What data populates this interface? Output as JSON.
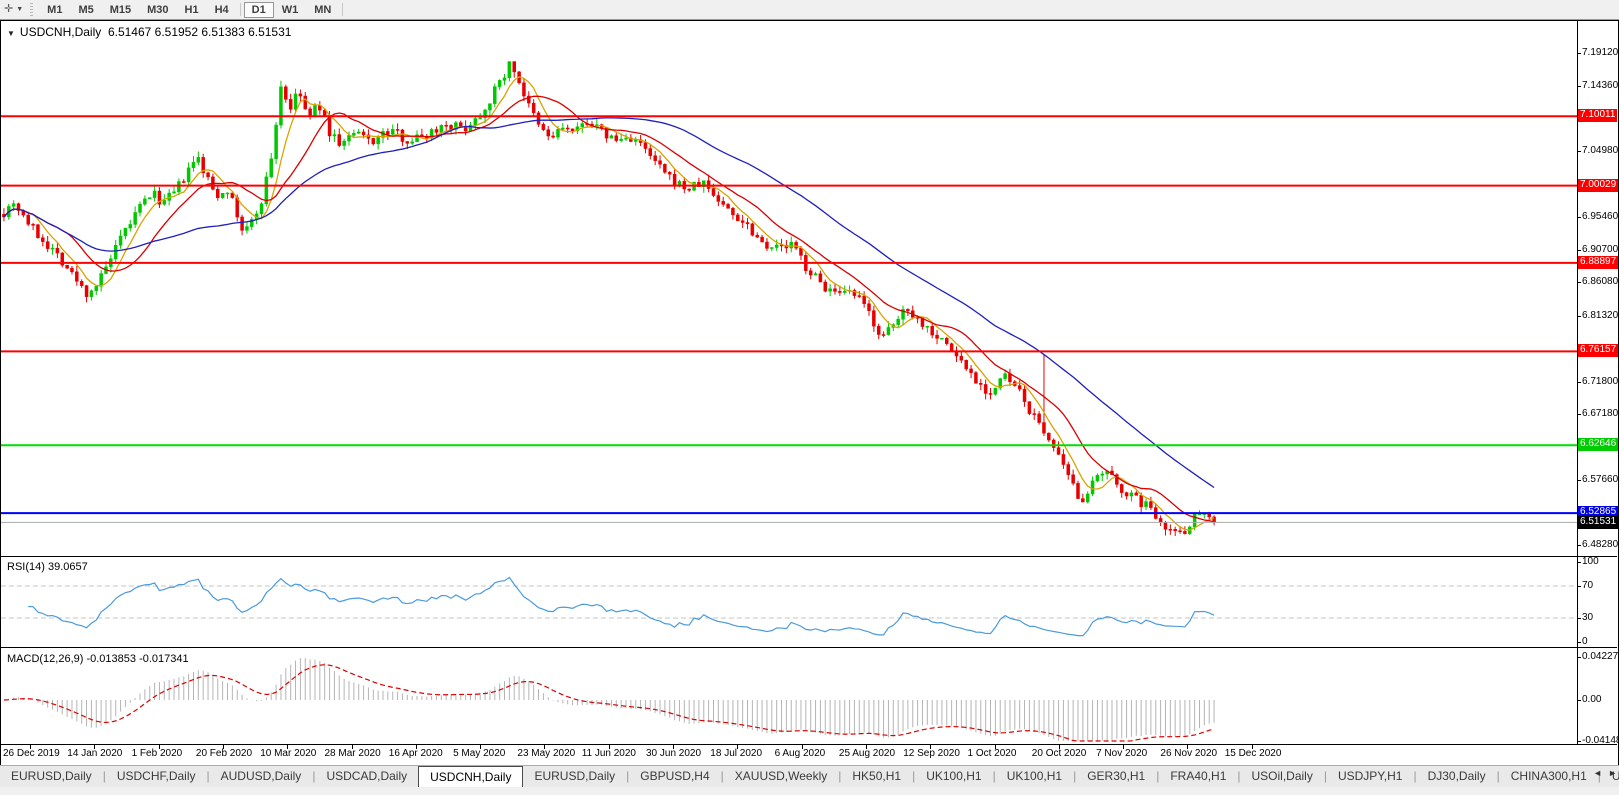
{
  "toolbar": {
    "cursor_tool_icon": "✛",
    "dropdown_caret": "▼",
    "timeframes": [
      {
        "label": "M1",
        "active": false
      },
      {
        "label": "M5",
        "active": false
      },
      {
        "label": "M15",
        "active": false
      },
      {
        "label": "M30",
        "active": false
      },
      {
        "label": "H1",
        "active": false
      },
      {
        "label": "H4",
        "active": false
      },
      {
        "label": "D1",
        "active": true
      },
      {
        "label": "W1",
        "active": false
      },
      {
        "label": "MN",
        "active": false
      }
    ]
  },
  "chart": {
    "collapse_caret": "▼",
    "symbol": "USDCNH,Daily",
    "ohlc": "6.51467 6.51952 6.51383 6.51531",
    "price_axis": [
      "7.19120",
      "7.14360",
      "7.04980",
      "6.95460",
      "6.90700",
      "6.86080",
      "6.81320",
      "6.71800",
      "6.67180",
      "6.57660",
      "6.48280"
    ],
    "level_labels": [
      {
        "label": "7.10011",
        "color": "#ff0000"
      },
      {
        "label": "7.00029",
        "color": "#ff0000"
      },
      {
        "label": "6.88897",
        "color": "#ff0000"
      },
      {
        "label": "6.76157",
        "color": "#ff0000"
      },
      {
        "label": "6.62646",
        "color": "#00cc00"
      },
      {
        "label": "6.52865",
        "color": "#0000e6"
      }
    ],
    "current_price": {
      "label": "6.51531",
      "bg": "#000000",
      "line_color": "#aaaaaa"
    }
  },
  "rsi": {
    "label": "RSI(14) 39.0657",
    "period": 14,
    "value": 39.0657,
    "axis": [
      "100",
      "70",
      "30",
      "0"
    ],
    "dashed_levels": [
      70,
      30
    ],
    "line_color": "#4a9ade"
  },
  "macd": {
    "label": "MACD(12,26,9) -0.013853 -0.017341",
    "axis": [
      "0.042275",
      "0.00",
      "-0.04148"
    ],
    "hist_color": "#b4b4b4",
    "signal_color": "#dd0000"
  },
  "date_axis": [
    "26 Dec 2019",
    "14 Jan 2020",
    "1 Feb 2020",
    "20 Feb 2020",
    "10 Mar 2020",
    "28 Mar 2020",
    "16 Apr 2020",
    "5 May 2020",
    "23 May 2020",
    "11 Jun 2020",
    "30 Jun 2020",
    "18 Jul 2020",
    "6 Aug 2020",
    "25 Aug 2020",
    "12 Sep 2020",
    "1 Oct 2020",
    "20 Oct 2020",
    "7 Nov 2020",
    "26 Nov 2020",
    "15 Dec 2020"
  ],
  "tabs": {
    "items": [
      {
        "label": "EURUSD,Daily",
        "active": false
      },
      {
        "label": "USDCHF,Daily",
        "active": false
      },
      {
        "label": "AUDUSD,Daily",
        "active": false
      },
      {
        "label": "USDCAD,Daily",
        "active": false
      },
      {
        "label": "USDCNH,Daily",
        "active": true
      },
      {
        "label": "EURUSD,Daily",
        "active": false
      },
      {
        "label": "GBPUSD,H4",
        "active": false
      },
      {
        "label": "XAUUSD,Weekly",
        "active": false
      },
      {
        "label": "HK50,H1",
        "active": false
      },
      {
        "label": "UK100,H1",
        "active": false
      },
      {
        "label": "UK100,H1",
        "active": false
      },
      {
        "label": "GER30,H1",
        "active": false
      },
      {
        "label": "FRA40,H1",
        "active": false
      },
      {
        "label": "USOil,Daily",
        "active": false
      },
      {
        "label": "USDJPY,H1",
        "active": false
      },
      {
        "label": "DJ30,Daily",
        "active": false
      },
      {
        "label": "CHINA300,H1",
        "active": false
      },
      {
        "label": "U",
        "active": false
      }
    ],
    "scroll_left": "◄",
    "scroll_right": "►"
  },
  "chart_data": {
    "type": "candlestick",
    "symbol": "USDCNH",
    "timeframe": "Daily",
    "visible_range": {
      "price_top": 7.1912,
      "price_bottom": 6.4828,
      "date_start": "26 Dec 2019",
      "date_end": "15 Dec 2020"
    },
    "last_ohlc": {
      "open": 6.51467,
      "high": 6.51952,
      "low": 6.51383,
      "close": 6.51531
    },
    "horizontal_levels": [
      {
        "price": 7.10011,
        "color": "#ff0000"
      },
      {
        "price": 7.00029,
        "color": "#ff0000"
      },
      {
        "price": 6.88897,
        "color": "#ff0000"
      },
      {
        "price": 6.76157,
        "color": "#ff0000"
      },
      {
        "price": 6.62646,
        "color": "#00dd00"
      },
      {
        "price": 6.52865,
        "color": "#0000ff"
      }
    ],
    "candles_approx": {
      "count": 250,
      "anchors": [
        [
          0.0,
          6.962
        ],
        [
          0.008,
          6.978
        ],
        [
          0.025,
          6.935
        ],
        [
          0.045,
          6.9
        ],
        [
          0.058,
          6.868
        ],
        [
          0.068,
          6.845
        ],
        [
          0.078,
          6.86
        ],
        [
          0.09,
          6.9
        ],
        [
          0.102,
          6.94
        ],
        [
          0.112,
          6.968
        ],
        [
          0.122,
          6.99
        ],
        [
          0.132,
          6.975
        ],
        [
          0.142,
          6.992
        ],
        [
          0.152,
          7.02
        ],
        [
          0.16,
          7.04
        ],
        [
          0.168,
          7.01
        ],
        [
          0.176,
          6.985
        ],
        [
          0.184,
          7.0
        ],
        [
          0.192,
          6.96
        ],
        [
          0.198,
          6.932
        ],
        [
          0.206,
          6.95
        ],
        [
          0.214,
          6.985
        ],
        [
          0.222,
          7.05
        ],
        [
          0.229,
          7.145
        ],
        [
          0.236,
          7.11
        ],
        [
          0.244,
          7.135
        ],
        [
          0.252,
          7.095
        ],
        [
          0.26,
          7.12
        ],
        [
          0.268,
          7.08
        ],
        [
          0.278,
          7.06
        ],
        [
          0.29,
          7.075
        ],
        [
          0.305,
          7.065
        ],
        [
          0.32,
          7.08
        ],
        [
          0.335,
          7.065
        ],
        [
          0.35,
          7.075
        ],
        [
          0.365,
          7.09
        ],
        [
          0.38,
          7.082
        ],
        [
          0.395,
          7.105
        ],
        [
          0.41,
          7.15
        ],
        [
          0.418,
          7.175
        ],
        [
          0.424,
          7.16
        ],
        [
          0.432,
          7.12
        ],
        [
          0.442,
          7.085
        ],
        [
          0.452,
          7.068
        ],
        [
          0.462,
          7.085
        ],
        [
          0.472,
          7.075
        ],
        [
          0.482,
          7.095
        ],
        [
          0.492,
          7.08
        ],
        [
          0.505,
          7.065
        ],
        [
          0.52,
          7.07
        ],
        [
          0.535,
          7.04
        ],
        [
          0.55,
          7.01
        ],
        [
          0.565,
          6.995
        ],
        [
          0.578,
          7.005
        ],
        [
          0.59,
          6.98
        ],
        [
          0.602,
          6.96
        ],
        [
          0.614,
          6.945
        ],
        [
          0.626,
          6.92
        ],
        [
          0.64,
          6.91
        ],
        [
          0.652,
          6.915
        ],
        [
          0.664,
          6.88
        ],
        [
          0.676,
          6.858
        ],
        [
          0.69,
          6.84
        ],
        [
          0.702,
          6.845
        ],
        [
          0.714,
          6.82
        ],
        [
          0.726,
          6.78
        ],
        [
          0.736,
          6.8
        ],
        [
          0.746,
          6.828
        ],
        [
          0.756,
          6.805
        ],
        [
          0.768,
          6.79
        ],
        [
          0.78,
          6.77
        ],
        [
          0.792,
          6.745
        ],
        [
          0.804,
          6.72
        ],
        [
          0.815,
          6.7
        ],
        [
          0.827,
          6.726
        ],
        [
          0.838,
          6.705
        ],
        [
          0.85,
          6.67
        ],
        [
          0.858,
          6.648
        ],
        [
          0.863,
          6.64
        ],
        [
          0.872,
          6.605
        ],
        [
          0.882,
          6.57
        ],
        [
          0.89,
          6.548
        ],
        [
          0.9,
          6.57
        ],
        [
          0.91,
          6.588
        ],
        [
          0.92,
          6.57
        ],
        [
          0.932,
          6.552
        ],
        [
          0.944,
          6.54
        ],
        [
          0.956,
          6.52
        ],
        [
          0.966,
          6.5
        ],
        [
          0.976,
          6.505
        ],
        [
          0.986,
          6.528
        ],
        [
          0.993,
          6.535
        ],
        [
          1.0,
          6.515
        ]
      ]
    },
    "colors": {
      "up": "#00c800",
      "down": "#e80000",
      "ma_fast": "#d9a300",
      "ma_mid": "#db0000",
      "ma_slow": "#1f1fbf"
    },
    "moving_averages": [
      {
        "period": 6,
        "color": "#d9a300"
      },
      {
        "period": 14,
        "color": "#db0000"
      },
      {
        "period": 40,
        "color": "#1f1fbf"
      }
    ],
    "rsi": {
      "period": 14,
      "last": 39.0657
    },
    "macd": {
      "fast": 12,
      "slow": 26,
      "signal": 9,
      "last_macd": -0.013853,
      "last_signal": -0.017341
    }
  }
}
